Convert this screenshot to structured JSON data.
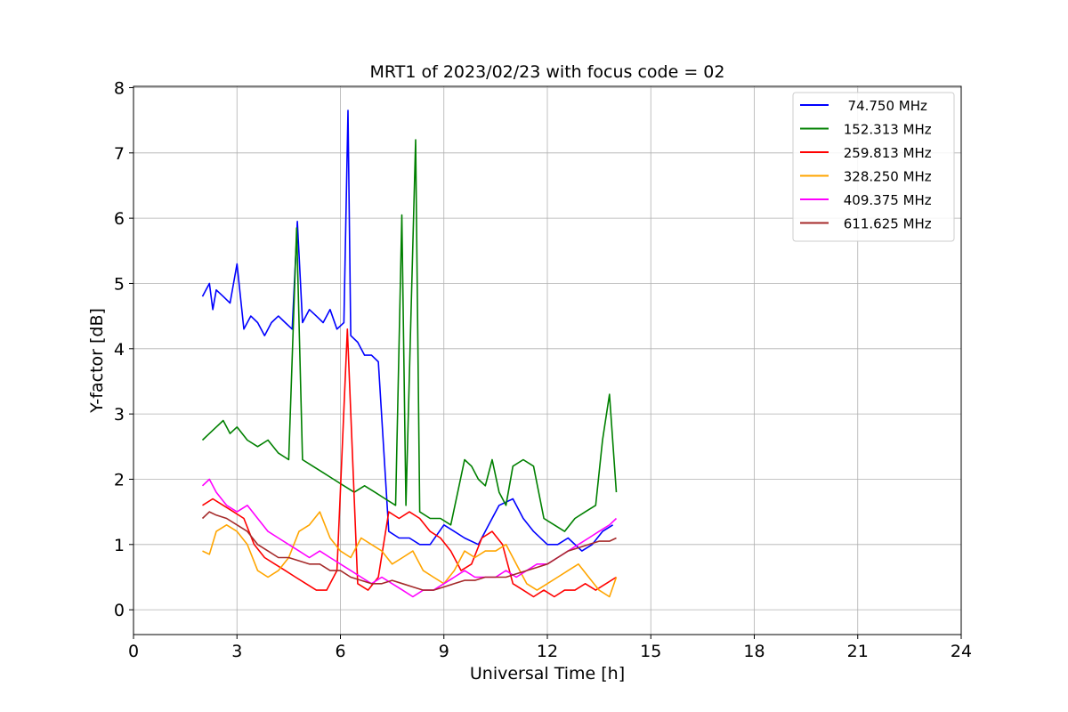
{
  "chart_data": {
    "type": "line",
    "title": "MRT1 of 2023/02/23 with focus code = 02",
    "xlabel": "Universal Time [h]",
    "ylabel": "Y-factor [dB]",
    "xlim": [
      0,
      24
    ],
    "ylim": [
      -0.38,
      8.02
    ],
    "xticks": [
      0,
      3,
      6,
      9,
      12,
      15,
      18,
      21,
      24
    ],
    "yticks": [
      0,
      1,
      2,
      3,
      4,
      5,
      6,
      7,
      8
    ],
    "grid": true,
    "legend_position": "top-right",
    "series": [
      {
        "name": "  74.750 MHz",
        "color": "#0000ff",
        "x": [
          2.0,
          2.1,
          2.2,
          2.3,
          2.4,
          2.6,
          2.8,
          3.0,
          3.2,
          3.4,
          3.6,
          3.8,
          4.0,
          4.2,
          4.4,
          4.6,
          4.75,
          4.9,
          5.1,
          5.3,
          5.5,
          5.7,
          5.9,
          6.1,
          6.22,
          6.3,
          6.5,
          6.7,
          6.9,
          7.1,
          7.4,
          7.7,
          8.0,
          8.3,
          8.6,
          9.0,
          9.3,
          9.6,
          10.0,
          10.3,
          10.6,
          11.0,
          11.3,
          11.6,
          12.0,
          12.3,
          12.6,
          13.0,
          13.3,
          13.6,
          13.9
        ],
        "y": [
          4.8,
          4.9,
          5.0,
          4.6,
          4.9,
          4.8,
          4.7,
          5.3,
          4.3,
          4.5,
          4.4,
          4.2,
          4.4,
          4.5,
          4.4,
          4.3,
          5.95,
          4.4,
          4.6,
          4.5,
          4.4,
          4.6,
          4.3,
          4.4,
          7.65,
          4.2,
          4.1,
          3.9,
          3.9,
          3.8,
          1.2,
          1.1,
          1.1,
          1.0,
          1.0,
          1.3,
          1.2,
          1.1,
          1.0,
          1.3,
          1.6,
          1.7,
          1.4,
          1.2,
          1.0,
          1.0,
          1.1,
          0.9,
          1.0,
          1.2,
          1.3
        ]
      },
      {
        "name": " 152.313 MHz",
        "color": "#008000",
        "x": [
          2.0,
          2.2,
          2.4,
          2.6,
          2.8,
          3.0,
          3.3,
          3.6,
          3.9,
          4.2,
          4.5,
          4.73,
          4.9,
          5.2,
          5.5,
          5.8,
          6.1,
          6.4,
          6.7,
          7.0,
          7.3,
          7.6,
          7.78,
          7.9,
          8.18,
          8.3,
          8.6,
          8.9,
          9.2,
          9.4,
          9.6,
          9.8,
          10.0,
          10.2,
          10.4,
          10.6,
          10.8,
          11.0,
          11.3,
          11.6,
          11.9,
          12.2,
          12.5,
          12.8,
          13.1,
          13.4,
          13.6,
          13.8,
          14.0
        ],
        "y": [
          2.6,
          2.7,
          2.8,
          2.9,
          2.7,
          2.8,
          2.6,
          2.5,
          2.6,
          2.4,
          2.3,
          5.85,
          2.3,
          2.2,
          2.1,
          2.0,
          1.9,
          1.8,
          1.9,
          1.8,
          1.7,
          1.6,
          6.05,
          1.6,
          7.2,
          1.5,
          1.4,
          1.4,
          1.3,
          1.8,
          2.3,
          2.2,
          2.0,
          1.9,
          2.3,
          1.8,
          1.6,
          2.2,
          2.3,
          2.2,
          1.4,
          1.3,
          1.2,
          1.4,
          1.5,
          1.6,
          2.6,
          3.3,
          1.8
        ]
      },
      {
        "name": " 259.813 MHz",
        "color": "#ff0000",
        "x": [
          2.0,
          2.3,
          2.6,
          2.9,
          3.2,
          3.5,
          3.8,
          4.1,
          4.4,
          4.7,
          5.0,
          5.3,
          5.6,
          5.9,
          6.2,
          6.5,
          6.8,
          7.1,
          7.4,
          7.7,
          8.0,
          8.3,
          8.6,
          8.9,
          9.2,
          9.5,
          9.8,
          10.1,
          10.4,
          10.7,
          11.0,
          11.3,
          11.6,
          11.9,
          12.2,
          12.5,
          12.8,
          13.1,
          13.4,
          13.7,
          14.0
        ],
        "y": [
          1.6,
          1.7,
          1.6,
          1.5,
          1.4,
          1.0,
          0.8,
          0.7,
          0.6,
          0.5,
          0.4,
          0.3,
          0.3,
          0.6,
          4.3,
          0.4,
          0.3,
          0.5,
          1.5,
          1.4,
          1.5,
          1.4,
          1.2,
          1.1,
          0.9,
          0.6,
          0.7,
          1.1,
          1.2,
          1.0,
          0.4,
          0.3,
          0.2,
          0.3,
          0.2,
          0.3,
          0.3,
          0.4,
          0.3,
          0.4,
          0.5
        ]
      },
      {
        "name": " 328.250 MHz",
        "color": "#ffa500",
        "x": [
          2.0,
          2.2,
          2.4,
          2.7,
          3.0,
          3.3,
          3.6,
          3.9,
          4.2,
          4.5,
          4.8,
          5.1,
          5.4,
          5.7,
          6.0,
          6.3,
          6.6,
          6.9,
          7.2,
          7.5,
          7.8,
          8.1,
          8.4,
          8.7,
          9.0,
          9.3,
          9.6,
          9.9,
          10.2,
          10.5,
          10.8,
          11.1,
          11.4,
          11.7,
          12.0,
          12.3,
          12.6,
          12.9,
          13.2,
          13.5,
          13.8,
          14.0
        ],
        "y": [
          0.9,
          0.85,
          1.2,
          1.3,
          1.2,
          1.0,
          0.6,
          0.5,
          0.6,
          0.8,
          1.2,
          1.3,
          1.5,
          1.1,
          0.9,
          0.8,
          1.1,
          1.0,
          0.9,
          0.7,
          0.8,
          0.9,
          0.6,
          0.5,
          0.4,
          0.6,
          0.9,
          0.8,
          0.9,
          0.9,
          1.0,
          0.7,
          0.4,
          0.3,
          0.4,
          0.5,
          0.6,
          0.7,
          0.5,
          0.3,
          0.2,
          0.5
        ]
      },
      {
        "name": " 409.375 MHz",
        "color": "#ff00ff",
        "x": [
          2.0,
          2.2,
          2.4,
          2.7,
          3.0,
          3.3,
          3.6,
          3.9,
          4.2,
          4.5,
          4.8,
          5.1,
          5.4,
          5.7,
          6.0,
          6.3,
          6.6,
          6.9,
          7.2,
          7.5,
          7.8,
          8.1,
          8.4,
          8.7,
          9.0,
          9.3,
          9.6,
          9.9,
          10.2,
          10.5,
          10.8,
          11.1,
          11.4,
          11.7,
          12.0,
          12.3,
          12.6,
          12.9,
          13.2,
          13.5,
          13.8,
          14.0
        ],
        "y": [
          1.9,
          2.0,
          1.8,
          1.6,
          1.5,
          1.6,
          1.4,
          1.2,
          1.1,
          1.0,
          0.9,
          0.8,
          0.9,
          0.8,
          0.7,
          0.6,
          0.5,
          0.4,
          0.5,
          0.4,
          0.3,
          0.2,
          0.3,
          0.3,
          0.4,
          0.5,
          0.6,
          0.5,
          0.5,
          0.5,
          0.6,
          0.5,
          0.6,
          0.7,
          0.7,
          0.8,
          0.9,
          1.0,
          1.1,
          1.2,
          1.3,
          1.4
        ]
      },
      {
        "name": " 611.625 MHz",
        "color": "#a52a2a",
        "x": [
          2.0,
          2.2,
          2.4,
          2.7,
          3.0,
          3.3,
          3.6,
          3.9,
          4.2,
          4.5,
          4.8,
          5.1,
          5.4,
          5.7,
          6.0,
          6.3,
          6.6,
          6.9,
          7.2,
          7.5,
          7.8,
          8.1,
          8.4,
          8.7,
          9.0,
          9.3,
          9.6,
          9.9,
          10.2,
          10.5,
          10.8,
          11.1,
          11.4,
          11.7,
          12.0,
          12.3,
          12.6,
          12.9,
          13.2,
          13.5,
          13.8,
          14.0
        ],
        "y": [
          1.4,
          1.5,
          1.45,
          1.4,
          1.3,
          1.2,
          1.0,
          0.9,
          0.8,
          0.8,
          0.75,
          0.7,
          0.7,
          0.6,
          0.6,
          0.5,
          0.45,
          0.4,
          0.4,
          0.45,
          0.4,
          0.35,
          0.3,
          0.3,
          0.35,
          0.4,
          0.45,
          0.45,
          0.5,
          0.5,
          0.5,
          0.55,
          0.6,
          0.65,
          0.7,
          0.8,
          0.9,
          0.95,
          1.0,
          1.05,
          1.05,
          1.1
        ]
      }
    ]
  }
}
